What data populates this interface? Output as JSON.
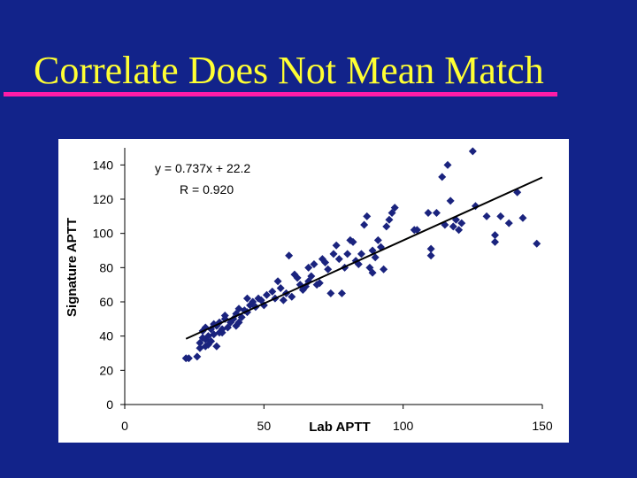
{
  "slide": {
    "title": "Correlate Does Not Mean Match",
    "colors": {
      "background": "#12238a",
      "title": "#ffff33",
      "rule": "#ff1ca8",
      "marker": "#1a237e",
      "panel": "#ffffff"
    }
  },
  "chart_data": {
    "type": "scatter",
    "xlabel": "Lab APTT",
    "ylabel": "Signature APTT",
    "xlim": [
      0,
      150
    ],
    "ylim": [
      0,
      150
    ],
    "xticks": [
      0,
      50,
      100,
      150
    ],
    "yticks": [
      0,
      20,
      40,
      60,
      80,
      100,
      120,
      140
    ],
    "grid": false,
    "annotations": {
      "equation": "y = 0.737x + 22.2",
      "r_value": "R = 0.920"
    },
    "trendline": {
      "slope": 0.737,
      "intercept": 22.2,
      "x_range": [
        22,
        150
      ]
    },
    "marker_color": "#1a237e",
    "points": [
      [
        22,
        27
      ],
      [
        23,
        27
      ],
      [
        26,
        28
      ],
      [
        27,
        33
      ],
      [
        27,
        36
      ],
      [
        28,
        39
      ],
      [
        28,
        43
      ],
      [
        29,
        34
      ],
      [
        29,
        38
      ],
      [
        29,
        45
      ],
      [
        30,
        40
      ],
      [
        30,
        35
      ],
      [
        31,
        44
      ],
      [
        31,
        37
      ],
      [
        32,
        47
      ],
      [
        32,
        41
      ],
      [
        33,
        34
      ],
      [
        33,
        46
      ],
      [
        34,
        42
      ],
      [
        34,
        48
      ],
      [
        35,
        44
      ],
      [
        35,
        42
      ],
      [
        36,
        50
      ],
      [
        36,
        52
      ],
      [
        37,
        45
      ],
      [
        38,
        48
      ],
      [
        39,
        50
      ],
      [
        40,
        53
      ],
      [
        40,
        46
      ],
      [
        41,
        48
      ],
      [
        41,
        56
      ],
      [
        42,
        51
      ],
      [
        43,
        55
      ],
      [
        44,
        54
      ],
      [
        44,
        62
      ],
      [
        45,
        58
      ],
      [
        46,
        60
      ],
      [
        47,
        57
      ],
      [
        48,
        62
      ],
      [
        49,
        61
      ],
      [
        50,
        58
      ],
      [
        51,
        64
      ],
      [
        53,
        66
      ],
      [
        54,
        62
      ],
      [
        55,
        72
      ],
      [
        56,
        68
      ],
      [
        57,
        61
      ],
      [
        58,
        65
      ],
      [
        59,
        87
      ],
      [
        60,
        63
      ],
      [
        61,
        76
      ],
      [
        62,
        74
      ],
      [
        63,
        70
      ],
      [
        64,
        67
      ],
      [
        65,
        69
      ],
      [
        66,
        80
      ],
      [
        66,
        72
      ],
      [
        67,
        75
      ],
      [
        68,
        82
      ],
      [
        69,
        70
      ],
      [
        70,
        71
      ],
      [
        71,
        85
      ],
      [
        72,
        83
      ],
      [
        73,
        79
      ],
      [
        74,
        65
      ],
      [
        75,
        88
      ],
      [
        76,
        93
      ],
      [
        77,
        85
      ],
      [
        78,
        65
      ],
      [
        79,
        80
      ],
      [
        80,
        88
      ],
      [
        81,
        96
      ],
      [
        82,
        95
      ],
      [
        83,
        84
      ],
      [
        84,
        82
      ],
      [
        85,
        88
      ],
      [
        86,
        105
      ],
      [
        87,
        110
      ],
      [
        88,
        80
      ],
      [
        89,
        77
      ],
      [
        89,
        90
      ],
      [
        90,
        86
      ],
      [
        91,
        96
      ],
      [
        92,
        92
      ],
      [
        93,
        79
      ],
      [
        94,
        104
      ],
      [
        95,
        108
      ],
      [
        96,
        112
      ],
      [
        97,
        115
      ],
      [
        104,
        102
      ],
      [
        105,
        102
      ],
      [
        109,
        112
      ],
      [
        110,
        91
      ],
      [
        110,
        87
      ],
      [
        112,
        112
      ],
      [
        114,
        133
      ],
      [
        115,
        105
      ],
      [
        116,
        140
      ],
      [
        117,
        119
      ],
      [
        118,
        104
      ],
      [
        119,
        108
      ],
      [
        120,
        102
      ],
      [
        121,
        106
      ],
      [
        125,
        148
      ],
      [
        126,
        116
      ],
      [
        130,
        110
      ],
      [
        133,
        95
      ],
      [
        133,
        99
      ],
      [
        135,
        110
      ],
      [
        138,
        106
      ],
      [
        141,
        124
      ],
      [
        143,
        109
      ],
      [
        148,
        94
      ]
    ]
  }
}
